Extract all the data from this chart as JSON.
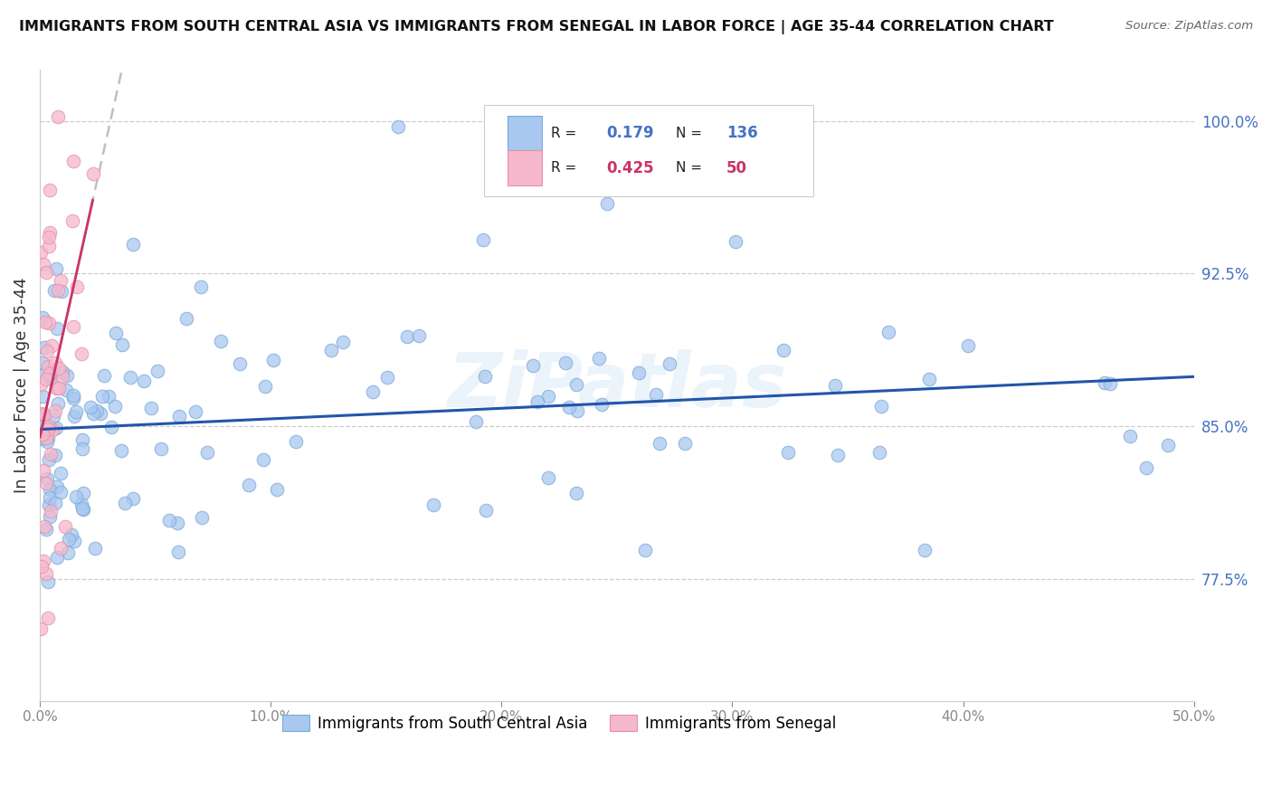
{
  "title": "IMMIGRANTS FROM SOUTH CENTRAL ASIA VS IMMIGRANTS FROM SENEGAL IN LABOR FORCE | AGE 35-44 CORRELATION CHART",
  "source": "Source: ZipAtlas.com",
  "ylabel": "In Labor Force | Age 35-44",
  "xlim": [
    0.0,
    0.5
  ],
  "ylim": [
    0.715,
    1.025
  ],
  "yticks": [
    0.775,
    0.85,
    0.925,
    1.0
  ],
  "ytick_labels": [
    "77.5%",
    "85.0%",
    "92.5%",
    "100.0%"
  ],
  "xticks": [
    0.0,
    0.1,
    0.2,
    0.3,
    0.4,
    0.5
  ],
  "xtick_labels": [
    "0.0%",
    "10.0%",
    "20.0%",
    "30.0%",
    "40.0%",
    "50.0%"
  ],
  "series_blue": {
    "label": "Immigrants from South Central Asia",
    "R": 0.179,
    "N": 136,
    "color": "#a8c8f0",
    "edge_color": "#7aaad8",
    "line_color": "#2255aa"
  },
  "series_pink": {
    "label": "Immigrants from Senegal",
    "R": 0.425,
    "N": 50,
    "color": "#f5b8cc",
    "edge_color": "#e890a8",
    "line_color": "#cc3366"
  },
  "watermark": "ZiPatlas",
  "background_color": "#ffffff",
  "legend_R_color": "#000000",
  "legend_N_color": "#4472c4",
  "legend_val_blue": "#4472c4",
  "legend_val_pink": "#cc3366"
}
